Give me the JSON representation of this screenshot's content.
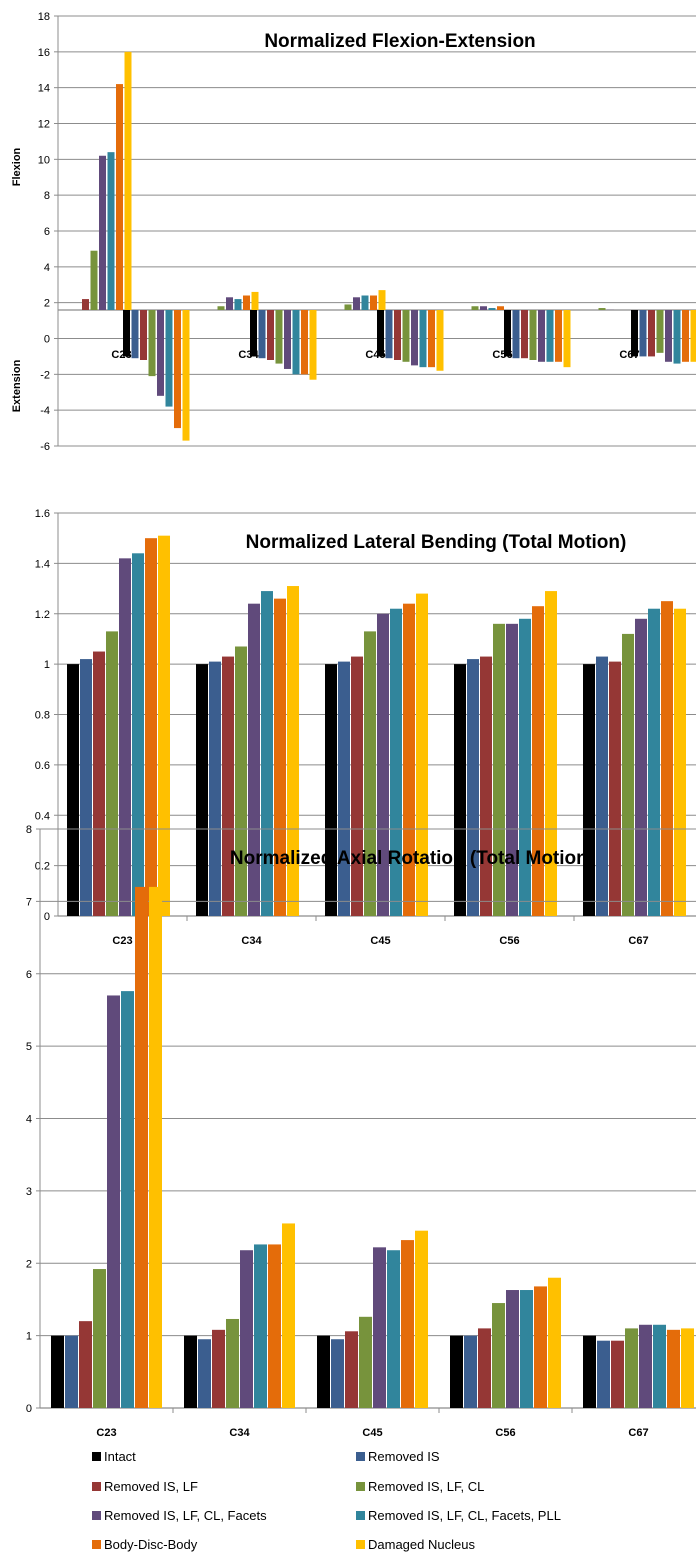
{
  "legend_series": [
    "Intact",
    "Removed IS",
    "Removed IS, LF",
    "Removed IS, LF, CL",
    "Removed IS, LF, CL, Facets",
    "Removed IS, LF, CL, Facets, PLL",
    "Body-Disc-Body",
    "Damaged Nucleus"
  ],
  "colors": [
    "#000000",
    "#3B5E8F",
    "#953735",
    "#77933C",
    "#604A7B",
    "#31859C",
    "#E46C0A",
    "#FFC000"
  ],
  "chart_data": [
    {
      "type": "bar",
      "title": "Normalized Flexion-Extension",
      "ylabel_top": "Flexion",
      "ylabel_bottom": "Extension",
      "ylim": [
        -6,
        18
      ],
      "yticks": [
        -6,
        -4,
        -2,
        0,
        2,
        4,
        6,
        8,
        10,
        12,
        14,
        16,
        18
      ],
      "categories": [
        "C23",
        "C34",
        "C45",
        "C56",
        "C67"
      ],
      "series": [
        {
          "name": "Intact",
          "flexion": [
            1,
            1,
            1,
            1,
            1
          ],
          "extension": [
            -1,
            -1,
            -1,
            -1,
            -1
          ]
        },
        {
          "name": "Removed IS",
          "flexion": [
            1.5,
            1,
            1.1,
            1,
            1
          ],
          "extension": [
            -1.1,
            -1.1,
            -1.1,
            -1.1,
            -1.0
          ]
        },
        {
          "name": "Removed IS, LF",
          "flexion": [
            2.2,
            1.3,
            1.1,
            1,
            1.1
          ],
          "extension": [
            -1.2,
            -1.2,
            -1.2,
            -1.1,
            -1.0
          ]
        },
        {
          "name": "Removed IS, LF, CL",
          "flexion": [
            4.9,
            1.8,
            1.9,
            1.8,
            1.7
          ],
          "extension": [
            -2.1,
            -1.4,
            -1.3,
            -1.2,
            -0.8
          ]
        },
        {
          "name": "Removed IS, LF, CL, Facets",
          "flexion": [
            10.2,
            2.3,
            2.3,
            1.8,
            1.6
          ],
          "extension": [
            -3.2,
            -1.7,
            -1.5,
            -1.3,
            -1.3
          ]
        },
        {
          "name": "Removed IS, LF, CL, Facets, PLL",
          "flexion": [
            10.4,
            2.2,
            2.4,
            1.7,
            1.3
          ],
          "extension": [
            -3.8,
            -2.0,
            -1.6,
            -1.3,
            -1.4
          ]
        },
        {
          "name": "Body-Disc-Body",
          "flexion": [
            14.2,
            2.4,
            2.4,
            1.8,
            1.5
          ],
          "extension": [
            -5.0,
            -2.0,
            -1.6,
            -1.3,
            -1.3
          ]
        },
        {
          "name": "Damaged Nucleus",
          "flexion": [
            16,
            2.6,
            2.7,
            1.5,
            1.5
          ],
          "extension": [
            -5.7,
            -2.3,
            -1.8,
            -1.6,
            -1.3
          ]
        }
      ]
    },
    {
      "type": "bar",
      "title": "Normalized Lateral Bending (Total Motion)",
      "ylim": [
        0,
        1.6
      ],
      "yticks": [
        0,
        0.2,
        0.4,
        0.6,
        0.8,
        1,
        1.2,
        1.4,
        1.6
      ],
      "categories": [
        "C23",
        "C34",
        "C45",
        "C56",
        "C67"
      ],
      "series": [
        {
          "name": "Intact",
          "values": [
            1,
            1,
            1,
            1,
            1
          ]
        },
        {
          "name": "Removed IS",
          "values": [
            1.02,
            1.01,
            1.01,
            1.02,
            1.03
          ]
        },
        {
          "name": "Removed IS, LF",
          "values": [
            1.05,
            1.03,
            1.03,
            1.03,
            1.01
          ]
        },
        {
          "name": "Removed IS, LF, CL",
          "values": [
            1.13,
            1.07,
            1.13,
            1.16,
            1.12
          ]
        },
        {
          "name": "Removed IS, LF, CL, Facets",
          "values": [
            1.42,
            1.24,
            1.2,
            1.16,
            1.18
          ]
        },
        {
          "name": "Removed IS, LF, CL, Facets, PLL",
          "values": [
            1.44,
            1.29,
            1.22,
            1.18,
            1.22
          ]
        },
        {
          "name": "Body-Disc-Body",
          "values": [
            1.5,
            1.26,
            1.24,
            1.23,
            1.25
          ]
        },
        {
          "name": "Damaged Nucleus",
          "values": [
            1.51,
            1.31,
            1.28,
            1.29,
            1.22
          ]
        }
      ]
    },
    {
      "type": "bar",
      "title": "Normalized Axial Rotation (Total Motion)",
      "ylim": [
        0,
        8
      ],
      "yticks": [
        0,
        1,
        2,
        3,
        4,
        5,
        6,
        7,
        8
      ],
      "categories": [
        "C23",
        "C34",
        "C45",
        "C56",
        "C67"
      ],
      "series": [
        {
          "name": "Intact",
          "values": [
            1,
            1,
            1,
            1,
            1
          ]
        },
        {
          "name": "Removed IS",
          "values": [
            1,
            0.95,
            0.95,
            1,
            0.93
          ]
        },
        {
          "name": "Removed IS, LF",
          "values": [
            1.2,
            1.08,
            1.06,
            1.1,
            0.93
          ]
        },
        {
          "name": "Removed IS, LF, CL",
          "values": [
            1.92,
            1.23,
            1.26,
            1.45,
            1.1
          ]
        },
        {
          "name": "Removed IS, LF, CL, Facets",
          "values": [
            5.7,
            2.18,
            2.22,
            1.63,
            1.15
          ]
        },
        {
          "name": "Removed IS, LF, CL, Facets, PLL",
          "values": [
            5.76,
            2.26,
            2.18,
            1.63,
            1.15
          ]
        },
        {
          "name": "Body-Disc-Body",
          "values": [
            7.2,
            2.26,
            2.32,
            1.68,
            1.08
          ]
        },
        {
          "name": "Damaged Nucleus",
          "values": [
            7.2,
            2.55,
            2.45,
            1.8,
            1.1
          ]
        }
      ]
    }
  ]
}
